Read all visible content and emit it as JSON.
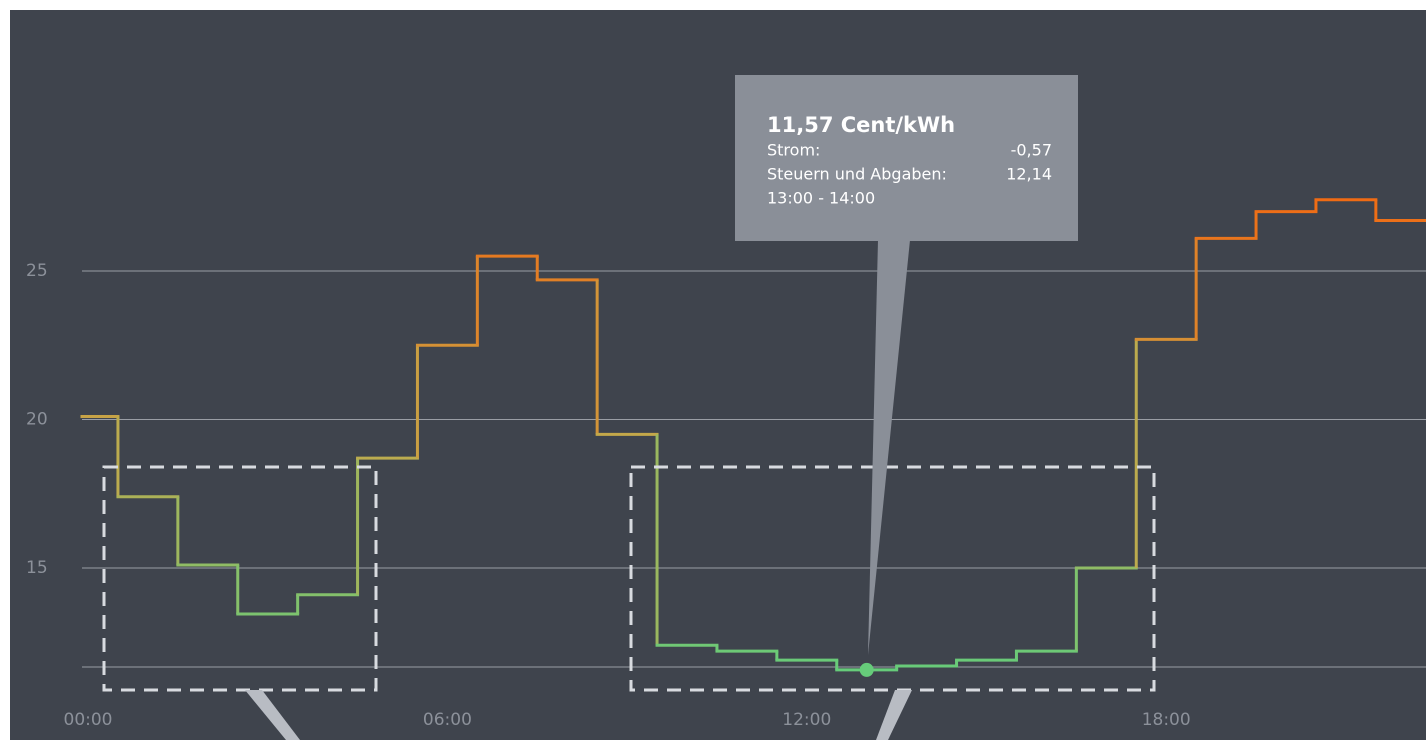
{
  "chart_data": {
    "type": "step",
    "x": [
      0,
      1,
      2,
      3,
      4,
      5,
      6,
      7,
      8,
      9,
      10,
      11,
      12,
      13,
      14,
      15,
      16,
      17,
      18,
      19,
      20,
      21,
      22
    ],
    "values": [
      20.1,
      17.4,
      15.1,
      13.45,
      14.1,
      18.7,
      22.5,
      25.5,
      24.7,
      19.5,
      12.4,
      12.2,
      11.9,
      11.57,
      11.7,
      11.9,
      12.2,
      15.0,
      22.7,
      26.1,
      27.0,
      27.4,
      26.7
    ],
    "colors": {
      "low": "#66cc7a",
      "mid": "#c4a84a",
      "high": "#f06b14"
    },
    "xlim": [
      0,
      22
    ],
    "xticks": [
      {
        "value": 0,
        "label": "00:00"
      },
      {
        "value": 6,
        "label": "06:00"
      },
      {
        "value": 12,
        "label": "12:00"
      },
      {
        "value": 18,
        "label": "18:00"
      }
    ],
    "ylim": [
      11.6,
      30
    ],
    "yticks": [
      15,
      20,
      25
    ],
    "grid": true,
    "highlight_x": 13,
    "tooltip": {
      "title": "11,57 Cent/kWh",
      "rows": [
        [
          "Strom:",
          "-0,57"
        ],
        [
          "Steuern und Abgaben:",
          "12,14"
        ]
      ],
      "time": "13:00 - 14:00"
    }
  }
}
